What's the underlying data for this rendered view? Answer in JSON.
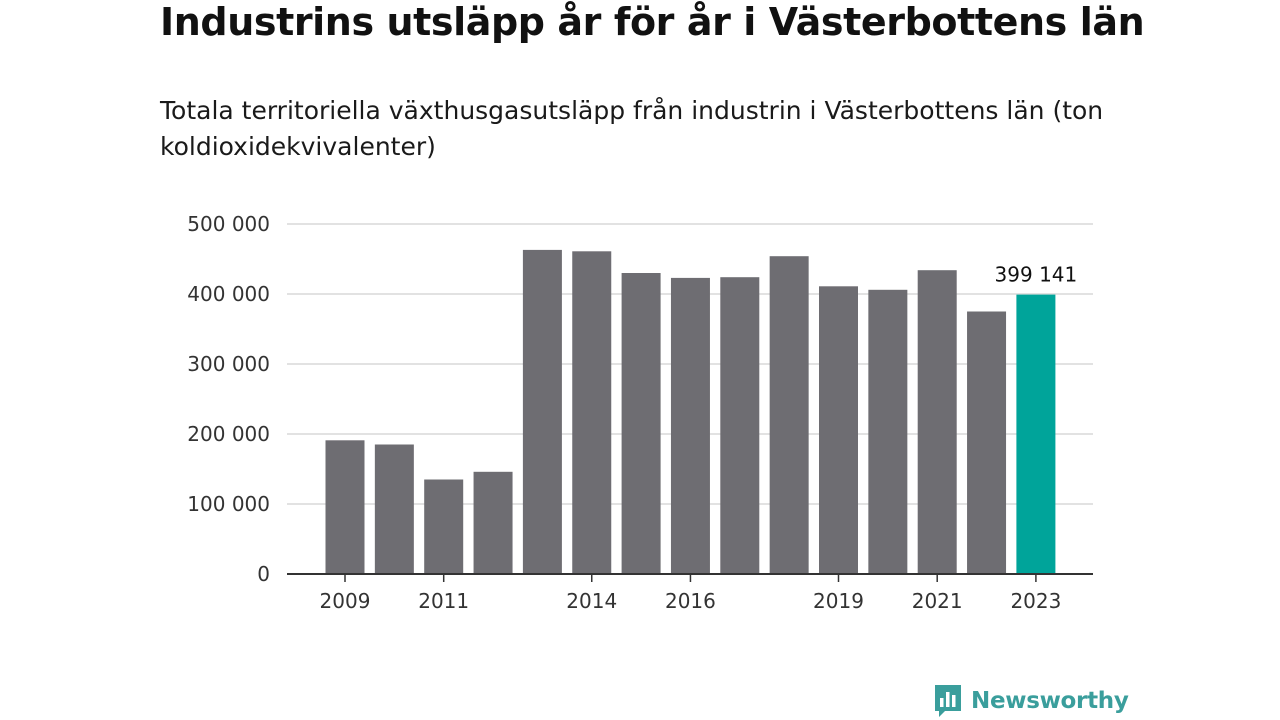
{
  "chart_data": {
    "type": "bar",
    "title": "Industrins utsläpp år för år i Västerbottens län",
    "subtitle": "Totala territoriella växthusgasutsläpp från industrin i Västerbottens län (ton koldioxidekvivalenter)",
    "categories": [
      "2009",
      "2010",
      "2011",
      "2012",
      "2013",
      "2014",
      "2015",
      "2016",
      "2017",
      "2018",
      "2019",
      "2020",
      "2021",
      "2022",
      "2023"
    ],
    "values": [
      191000,
      185000,
      135000,
      146000,
      463000,
      461000,
      430000,
      423000,
      424000,
      454000,
      411000,
      406000,
      434000,
      375000,
      399141
    ],
    "ylim": [
      0,
      500000
    ],
    "yticks": [
      0,
      100000,
      200000,
      300000,
      400000,
      500000
    ],
    "ytick_labels": [
      "0",
      "100 000",
      "200 000",
      "300 000",
      "400 000",
      "500 000"
    ],
    "xtick_labels": [
      "2009",
      "2011",
      "2014",
      "2016",
      "2019",
      "2021",
      "2023"
    ],
    "highlight": {
      "category": "2023",
      "label": "399 141"
    },
    "grid": true,
    "colors": {
      "bar": "#6e6d72",
      "highlight": "#00a49a",
      "grid": "#d9d9d9",
      "axis": "#333333"
    }
  },
  "brand": {
    "name": "Newsworthy",
    "icon": "newsworthy-logo-icon",
    "color": "#3a9e9c"
  }
}
